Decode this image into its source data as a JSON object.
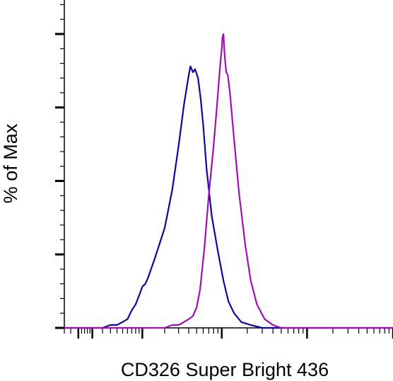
{
  "chart_data": {
    "type": "line",
    "title": "",
    "xlabel": "CD326 Super Bright 436",
    "ylabel": "% of Max",
    "x_scale": "log",
    "xlim": [
      -10,
      100000
    ],
    "ylim": [
      0,
      100
    ],
    "grid": false,
    "series": [
      {
        "color": "#0a0a9a",
        "points": [
          [
            -10,
            0
          ],
          [
            0,
            0
          ],
          [
            20,
            0
          ],
          [
            30,
            1
          ],
          [
            40,
            1
          ],
          [
            50,
            2
          ],
          [
            60,
            3
          ],
          [
            70,
            6
          ],
          [
            80,
            8
          ],
          [
            90,
            11
          ],
          [
            100,
            14
          ],
          [
            110,
            15
          ],
          [
            120,
            17
          ],
          [
            150,
            24
          ],
          [
            200,
            34
          ],
          [
            250,
            47
          ],
          [
            300,
            62
          ],
          [
            350,
            76
          ],
          [
            400,
            86
          ],
          [
            420,
            89
          ],
          [
            450,
            87
          ],
          [
            480,
            88
          ],
          [
            520,
            85
          ],
          [
            560,
            78
          ],
          [
            600,
            69
          ],
          [
            660,
            54
          ],
          [
            760,
            38
          ],
          [
            900,
            26
          ],
          [
            1050,
            16
          ],
          [
            1200,
            9
          ],
          [
            1400,
            5
          ],
          [
            1700,
            2
          ],
          [
            2200,
            1
          ],
          [
            3000,
            0
          ],
          [
            100000,
            0
          ]
        ]
      },
      {
        "color": "#a010b0",
        "points": [
          [
            -10,
            0
          ],
          [
            100,
            0
          ],
          [
            200,
            0
          ],
          [
            250,
            1
          ],
          [
            300,
            1
          ],
          [
            350,
            2
          ],
          [
            400,
            3
          ],
          [
            450,
            4
          ],
          [
            500,
            7
          ],
          [
            550,
            13
          ],
          [
            620,
            27
          ],
          [
            700,
            45
          ],
          [
            800,
            62
          ],
          [
            880,
            76
          ],
          [
            930,
            85
          ],
          [
            970,
            91
          ],
          [
            1000,
            95
          ],
          [
            1020,
            99
          ],
          [
            1050,
            100
          ],
          [
            1080,
            93
          ],
          [
            1130,
            87
          ],
          [
            1180,
            86
          ],
          [
            1250,
            80
          ],
          [
            1400,
            64
          ],
          [
            1600,
            46
          ],
          [
            1900,
            28
          ],
          [
            2200,
            16
          ],
          [
            2600,
            8
          ],
          [
            3200,
            3
          ],
          [
            4000,
            1
          ],
          [
            5000,
            0
          ],
          [
            100000,
            0
          ]
        ]
      }
    ]
  }
}
